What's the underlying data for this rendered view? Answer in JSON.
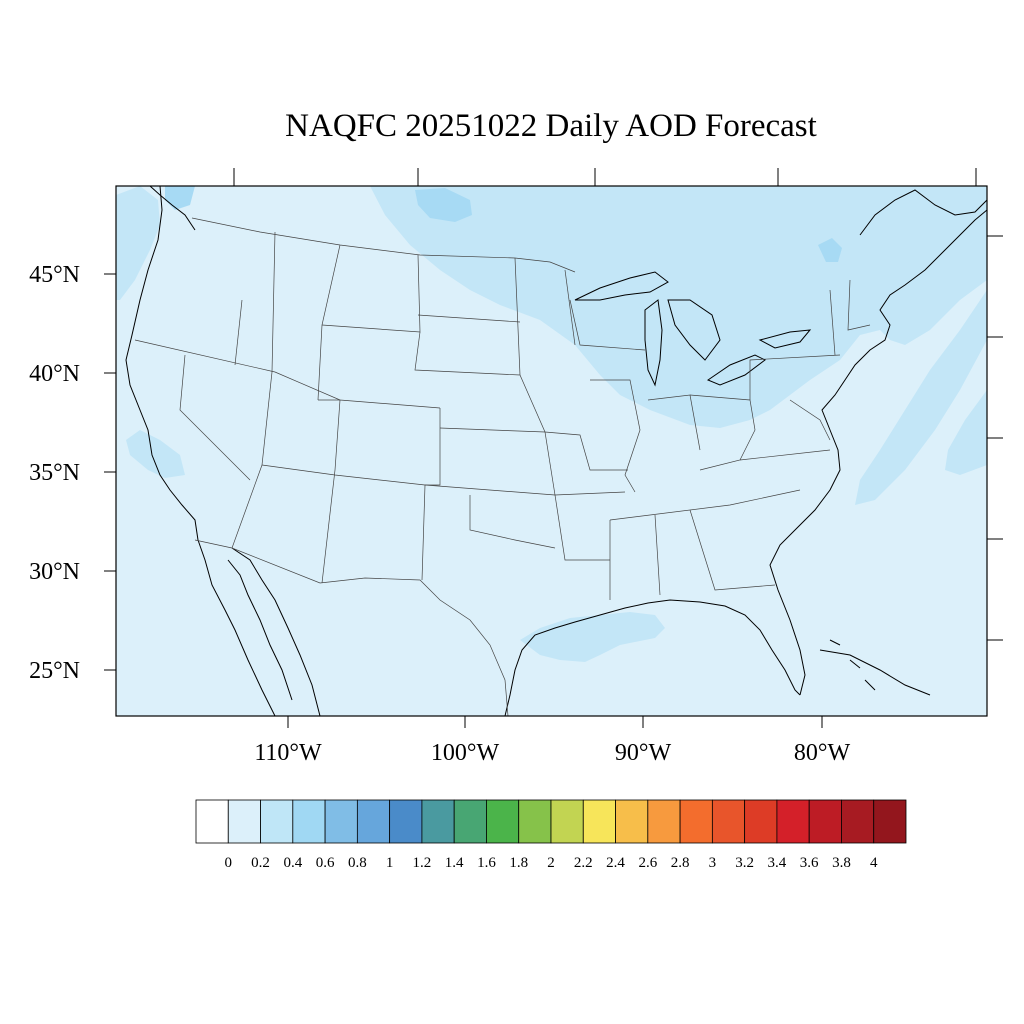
{
  "title": "NAQFC 20251022 Daily AOD Forecast",
  "map": {
    "projection": "lambert-conformal",
    "region": "CONUS",
    "coastline_color": "#000000",
    "state_border_color": "#333333",
    "background_field_color": "#dcf0fa"
  },
  "lat_labels": [
    "45°N",
    "40°N",
    "35°N",
    "30°N",
    "25°N"
  ],
  "lon_labels": [
    "110°W",
    "100°W",
    "90°W",
    "80°W"
  ],
  "colorbar": {
    "levels": [
      "0",
      "0.2",
      "0.4",
      "0.6",
      "0.8",
      "1",
      "1.2",
      "1.4",
      "1.6",
      "1.8",
      "2",
      "2.2",
      "2.4",
      "2.6",
      "2.8",
      "3",
      "3.2",
      "3.4",
      "3.6",
      "3.8",
      "4"
    ],
    "colors": [
      "#ffffff",
      "#dcf0fa",
      "#bfe6f7",
      "#a0d8f3",
      "#80bde6",
      "#66a6dc",
      "#4a8bc9",
      "#4a9aa0",
      "#48a673",
      "#4bb44a",
      "#86c24a",
      "#c2d452",
      "#f7e55a",
      "#f7be4a",
      "#f79a3e",
      "#f36d2d",
      "#e8552b",
      "#dd3c26",
      "#d42029",
      "#bd1c25",
      "#a71b22",
      "#93161d"
    ]
  }
}
